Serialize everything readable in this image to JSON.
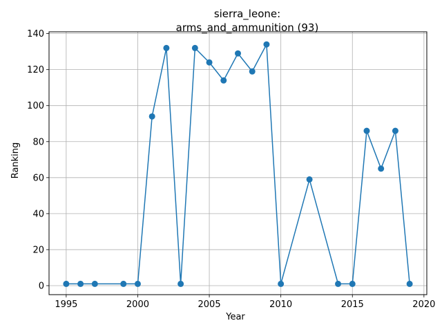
{
  "chart_data": {
    "type": "line",
    "title_line1": "sierra_leone:",
    "title_line2": "arms_and_ammunition (93)",
    "xlabel": "Year",
    "ylabel": "Ranking",
    "xlim": [
      1993.8,
      2020.2
    ],
    "ylim": [
      -5,
      141
    ],
    "grid": true,
    "x_ticks": [
      1995,
      2000,
      2005,
      2010,
      2015,
      2020
    ],
    "y_ticks": [
      0,
      20,
      40,
      60,
      80,
      100,
      120,
      140
    ],
    "series": [
      {
        "color": "#1f77b4",
        "marker": "circle",
        "x": [
          1995,
          1996,
          1997,
          1999,
          2000,
          2001,
          2002,
          2003,
          2004,
          2005,
          2006,
          2007,
          2008,
          2009,
          2010,
          2012,
          2014,
          2015,
          2016,
          2017,
          2018,
          2019
        ],
        "y": [
          1,
          1,
          1,
          1,
          1,
          94,
          132,
          1,
          132,
          124,
          114,
          129,
          119,
          134,
          1,
          59,
          1,
          1,
          86,
          65,
          86,
          1
        ]
      }
    ]
  }
}
